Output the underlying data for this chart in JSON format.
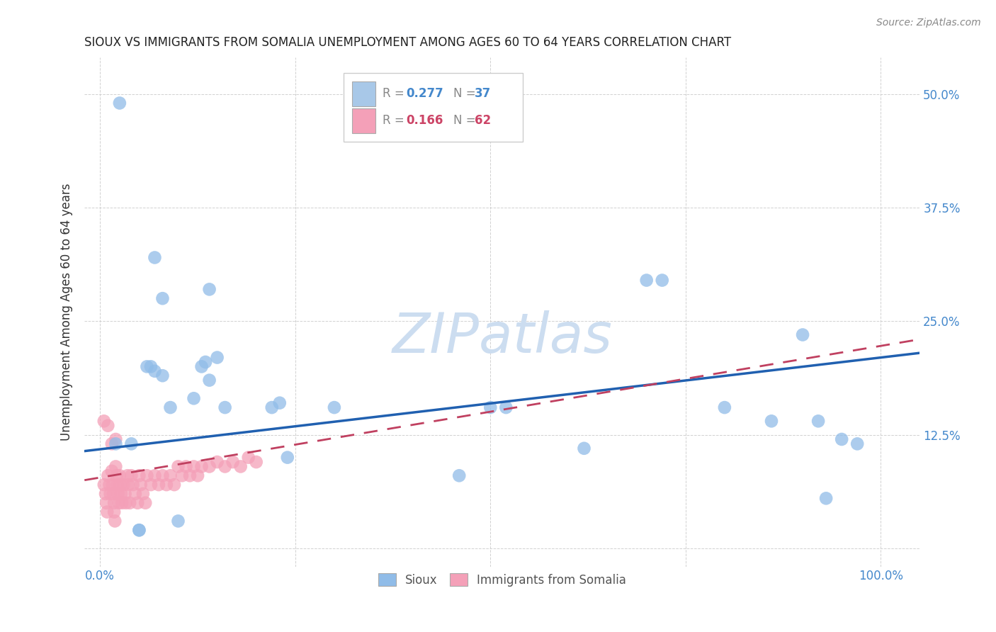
{
  "title": "SIOUX VS IMMIGRANTS FROM SOMALIA UNEMPLOYMENT AMONG AGES 60 TO 64 YEARS CORRELATION CHART",
  "source": "Source: ZipAtlas.com",
  "ylabel": "Unemployment Among Ages 60 to 64 years",
  "xlim": [
    -0.02,
    1.05
  ],
  "ylim": [
    -0.02,
    0.54
  ],
  "x_ticks": [
    0.0,
    0.25,
    0.5,
    0.75,
    1.0
  ],
  "y_ticks": [
    0.0,
    0.125,
    0.25,
    0.375,
    0.5
  ],
  "x_tick_labels": [
    "0.0%",
    "",
    "",
    "",
    "100.0%"
  ],
  "y_tick_labels": [
    "",
    "12.5%",
    "25.0%",
    "37.5%",
    "50.0%"
  ],
  "legend_color1": "#a8c8e8",
  "legend_color2": "#f4a0b8",
  "sioux_color": "#90bce8",
  "somalia_color": "#f4a0b8",
  "trendline1_color": "#2060b0",
  "trendline2_color": "#c04060",
  "watermark_color": "#ccddf0",
  "sioux_x": [
    0.02,
    0.025,
    0.04,
    0.05,
    0.05,
    0.06,
    0.065,
    0.07,
    0.08,
    0.09,
    0.1,
    0.12,
    0.13,
    0.135,
    0.14,
    0.15,
    0.16,
    0.22,
    0.23,
    0.24,
    0.3,
    0.46,
    0.5,
    0.52,
    0.62,
    0.7,
    0.72,
    0.8,
    0.86,
    0.9,
    0.92,
    0.93,
    0.95,
    0.97,
    0.07,
    0.08,
    0.14
  ],
  "sioux_y": [
    0.115,
    0.49,
    0.115,
    0.02,
    0.02,
    0.2,
    0.2,
    0.195,
    0.19,
    0.155,
    0.03,
    0.165,
    0.2,
    0.205,
    0.185,
    0.21,
    0.155,
    0.155,
    0.16,
    0.1,
    0.155,
    0.08,
    0.155,
    0.155,
    0.11,
    0.295,
    0.295,
    0.155,
    0.14,
    0.235,
    0.14,
    0.055,
    0.12,
    0.115,
    0.32,
    0.275,
    0.285
  ],
  "somalia_x": [
    0.005,
    0.005,
    0.007,
    0.008,
    0.009,
    0.01,
    0.01,
    0.012,
    0.013,
    0.015,
    0.015,
    0.016,
    0.017,
    0.018,
    0.018,
    0.019,
    0.02,
    0.02,
    0.021,
    0.022,
    0.023,
    0.024,
    0.025,
    0.026,
    0.027,
    0.028,
    0.03,
    0.032,
    0.033,
    0.035,
    0.036,
    0.038,
    0.04,
    0.042,
    0.045,
    0.048,
    0.05,
    0.052,
    0.055,
    0.058,
    0.06,
    0.065,
    0.07,
    0.075,
    0.08,
    0.085,
    0.09,
    0.095,
    0.1,
    0.105,
    0.11,
    0.115,
    0.12,
    0.125,
    0.13,
    0.14,
    0.15,
    0.16,
    0.17,
    0.18,
    0.19,
    0.2
  ],
  "somalia_y": [
    0.14,
    0.07,
    0.06,
    0.05,
    0.04,
    0.135,
    0.08,
    0.07,
    0.06,
    0.115,
    0.085,
    0.07,
    0.06,
    0.05,
    0.04,
    0.03,
    0.12,
    0.09,
    0.08,
    0.07,
    0.06,
    0.05,
    0.08,
    0.07,
    0.06,
    0.05,
    0.07,
    0.06,
    0.05,
    0.08,
    0.07,
    0.05,
    0.08,
    0.07,
    0.06,
    0.05,
    0.08,
    0.07,
    0.06,
    0.05,
    0.08,
    0.07,
    0.08,
    0.07,
    0.08,
    0.07,
    0.08,
    0.07,
    0.09,
    0.08,
    0.09,
    0.08,
    0.09,
    0.08,
    0.09,
    0.09,
    0.095,
    0.09,
    0.095,
    0.09,
    0.1,
    0.095
  ],
  "trend1_x0": -0.02,
  "trend1_y0": 0.107,
  "trend1_x1": 1.05,
  "trend1_y1": 0.215,
  "trend2_x0": -0.02,
  "trend2_y0": 0.075,
  "trend2_x1": 1.05,
  "trend2_y1": 0.23
}
